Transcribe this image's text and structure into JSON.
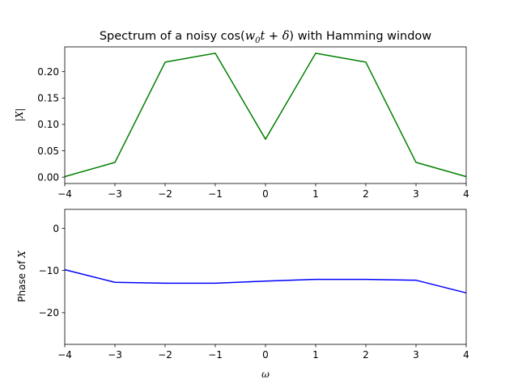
{
  "chart_data": [
    {
      "type": "line",
      "title_parts": [
        "Spectrum of a noisy cos(",
        "w",
        "0",
        "t",
        " + ",
        "δ",
        ") with Hamming window"
      ],
      "ylabel": "|X|",
      "x": [
        -4,
        -3,
        -2,
        -1,
        0,
        1,
        2,
        3,
        4
      ],
      "series": [
        {
          "color": "#008000",
          "values": [
            0.001,
            0.028,
            0.218,
            0.235,
            0.072,
            0.235,
            0.218,
            0.028,
            0.001
          ]
        }
      ],
      "xlim": [
        -4,
        4
      ],
      "ylim": [
        -0.012,
        0.247
      ],
      "xticks": [
        -4,
        -3,
        -2,
        -1,
        0,
        1,
        2,
        3,
        4
      ],
      "xtick_labels": [
        "−4",
        "−3",
        "−2",
        "−1",
        "0",
        "1",
        "2",
        "3",
        "4"
      ],
      "yticks": [
        0.0,
        0.05,
        0.1,
        0.15,
        0.2
      ],
      "ytick_labels": [
        "0.00",
        "0.05",
        "0.10",
        "0.15",
        "0.20"
      ],
      "grid": false
    },
    {
      "type": "line",
      "ylabel_parts": [
        "Phase of ",
        "X"
      ],
      "xlabel": "ω",
      "x": [
        -4,
        -3,
        -2,
        -1,
        0,
        1,
        2,
        3,
        4
      ],
      "series": [
        {
          "color": "#0000ff",
          "values": [
            -9.8,
            -12.8,
            -13.0,
            -13.0,
            -12.5,
            -12.1,
            -12.1,
            -12.3,
            -15.3
          ]
        }
      ],
      "xlim": [
        -4,
        4
      ],
      "ylim": [
        -27.5,
        4.5
      ],
      "xticks": [
        -4,
        -3,
        -2,
        -1,
        0,
        1,
        2,
        3,
        4
      ],
      "xtick_labels": [
        "−4",
        "−3",
        "−2",
        "−1",
        "0",
        "1",
        "2",
        "3",
        "4"
      ],
      "yticks": [
        0,
        -10,
        -20
      ],
      "ytick_labels": [
        "0",
        "−10",
        "−20"
      ],
      "grid": false
    }
  ]
}
